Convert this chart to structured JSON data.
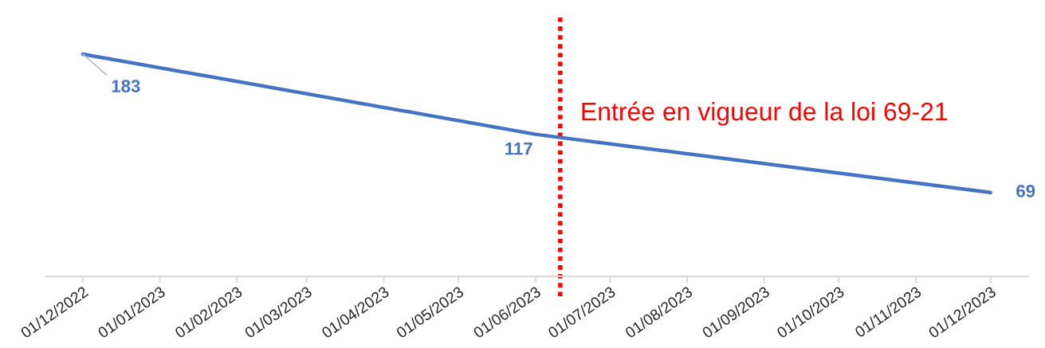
{
  "chart_data": {
    "type": "line",
    "x": [
      "2022-12-01",
      "2023-06-01",
      "2023-12-01"
    ],
    "series": [
      {
        "color": "#4472c4",
        "values": [
          183,
          117,
          69
        ]
      }
    ],
    "data_labels": true,
    "marker": "none",
    "line_style": "solid",
    "xlim": [
      "2022-11-16",
      "2023-12-16"
    ],
    "xticks": [
      {
        "value": "2022-12-01",
        "label": "01/12/2022"
      },
      {
        "value": "2023-01-01",
        "label": "01/01/2023"
      },
      {
        "value": "2023-02-01",
        "label": "01/02/2023"
      },
      {
        "value": "2023-03-01",
        "label": "01/03/2023"
      },
      {
        "value": "2023-04-01",
        "label": "01/04/2023"
      },
      {
        "value": "2023-05-01",
        "label": "01/05/2023"
      },
      {
        "value": "2023-06-01",
        "label": "01/06/2023"
      },
      {
        "value": "2023-07-01",
        "label": "01/07/2023"
      },
      {
        "value": "2023-08-01",
        "label": "01/08/2023"
      },
      {
        "value": "2023-09-01",
        "label": "01/09/2023"
      },
      {
        "value": "2023-10-01",
        "label": "01/10/2023"
      },
      {
        "value": "2023-11-01",
        "label": "01/11/2023"
      },
      {
        "value": "2023-12-01",
        "label": "01/12/2023"
      }
    ],
    "tick_labels": "x",
    "ref_lines": [
      {
        "axis": "x",
        "value": "2023-06-11",
        "label": "Entrée en vigueur de la loi 69-21",
        "color": "#ff0000",
        "line_style": "dotted"
      }
    ]
  }
}
